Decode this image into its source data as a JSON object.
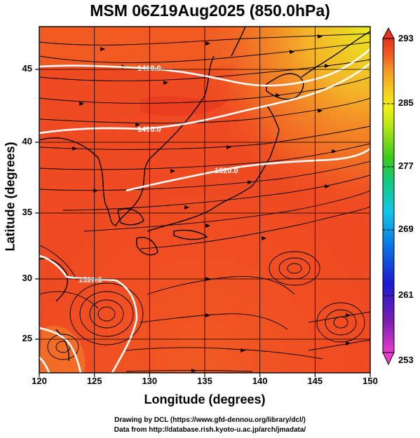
{
  "title": "MSM 06Z19Aug2025 (850.0hPa)",
  "axes": {
    "xlabel": "Longitude (degrees)",
    "ylabel": "Latitude  (degrees)",
    "x_ticks": [
      "120",
      "125",
      "130",
      "135",
      "140",
      "145",
      "150"
    ],
    "y_ticks": [
      "45",
      "40",
      "35",
      "30",
      "25"
    ]
  },
  "colorbar": {
    "ticks": [
      "293",
      "285",
      "277",
      "269",
      "261",
      "253"
    ],
    "range": [
      253,
      293
    ],
    "colors": [
      "#e93ccf",
      "#7a1fb0",
      "#1a1ad0",
      "#0a6ee0",
      "#10c8e8",
      "#14c878",
      "#3cc81e",
      "#b4e614",
      "#f0f014",
      "#f5c81e",
      "#f59628",
      "#f05a23",
      "#e6321e"
    ]
  },
  "contours": {
    "labels": [
      "1460.0",
      "1490.0",
      "1520.0",
      "1520.0"
    ]
  },
  "map": {
    "lon_range": [
      120,
      150
    ],
    "lat_range": [
      22.5,
      48
    ],
    "field_base_color": "#ef4a22",
    "cyclone_centers": [
      {
        "lon": 127.8,
        "lat": 26.8
      },
      {
        "lon": 143.4,
        "lat": 30.6
      },
      {
        "lon": 147.6,
        "lat": 26.6
      }
    ]
  },
  "credits": {
    "line1": "Drawing by DCL (https://www.gfd-dennou.org/library/dcl/)",
    "line2": "Data from http://database.rish.kyoto-u.ac.jp/arch/jmadata/"
  }
}
